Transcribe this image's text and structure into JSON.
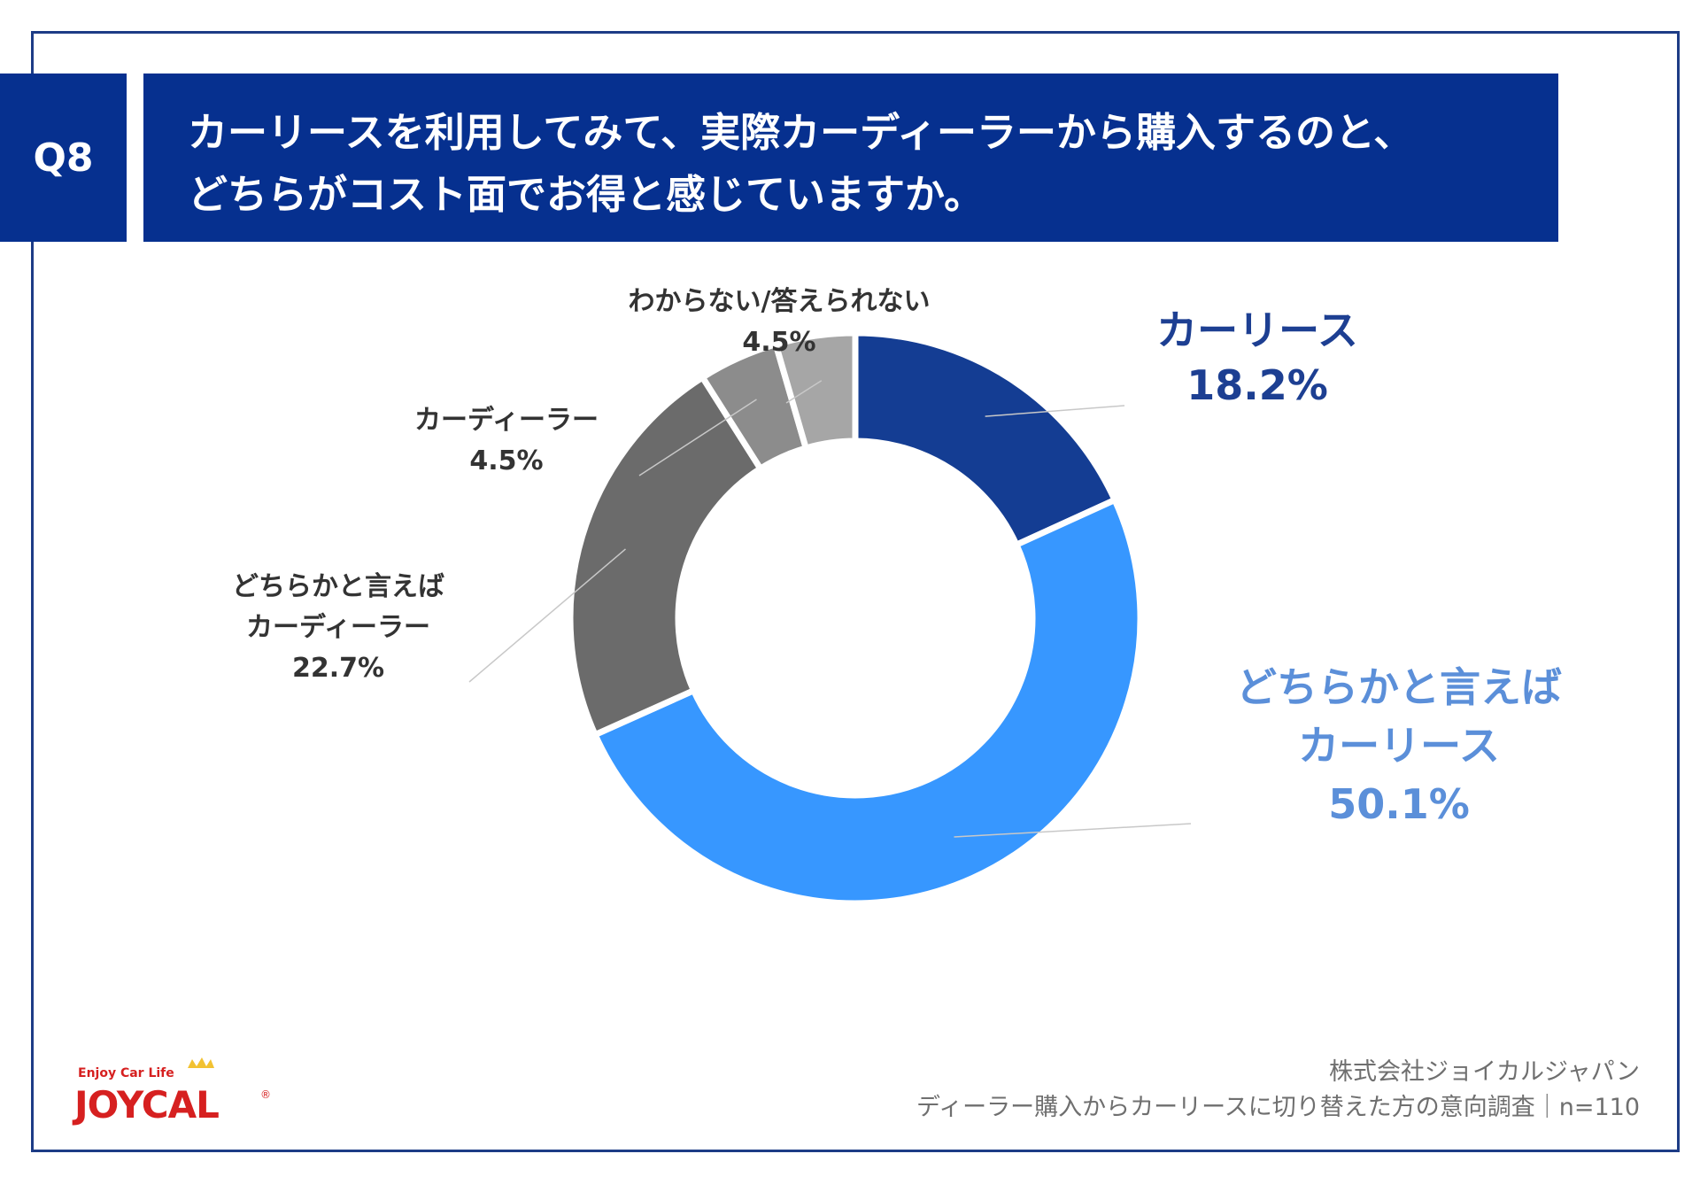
{
  "question": {
    "badge": "Q8",
    "line1": "カーリースを利用してみて、実際カーディーラーから購入するのと、",
    "line2": "どちらがコスト面でお得と感じていますか。"
  },
  "chart_data": {
    "type": "pie",
    "donut": true,
    "categories": [
      "カーリース",
      "どちらかと言えばカーリース",
      "どちらかと言えばカーディーラー",
      "カーディーラー",
      "わからない/答えられない"
    ],
    "values": [
      18.2,
      50.1,
      22.7,
      4.5,
      4.5
    ],
    "labels": [
      {
        "lines": [
          "カーリース"
        ],
        "value_text": "18.2%"
      },
      {
        "lines": [
          "どちらかと言えば",
          "カーリース"
        ],
        "value_text": "50.1%"
      },
      {
        "lines": [
          "どちらかと言えば",
          "カーディーラー"
        ],
        "value_text": "22.7%"
      },
      {
        "lines": [
          "カーディーラー"
        ],
        "value_text": "4.5%"
      },
      {
        "lines": [
          "わからない/答えられない"
        ],
        "value_text": "4.5%"
      }
    ],
    "colors": [
      "#143d93",
      "#3797ff",
      "#6b6b6b",
      "#8c8c8c",
      "#a6a6a6"
    ],
    "label_colors": [
      "#1d3f92",
      "#5b8fd9",
      "#333333",
      "#333333",
      "#333333"
    ]
  },
  "footer": {
    "company": "株式会社ジョイカルジャパン",
    "survey": "ディーラー購入からカーリースに切り替えた方の意向調査｜n=110"
  },
  "logo": {
    "tagline": "Enjoy Car Life",
    "brand": "JOYCAL",
    "mark": "®"
  }
}
